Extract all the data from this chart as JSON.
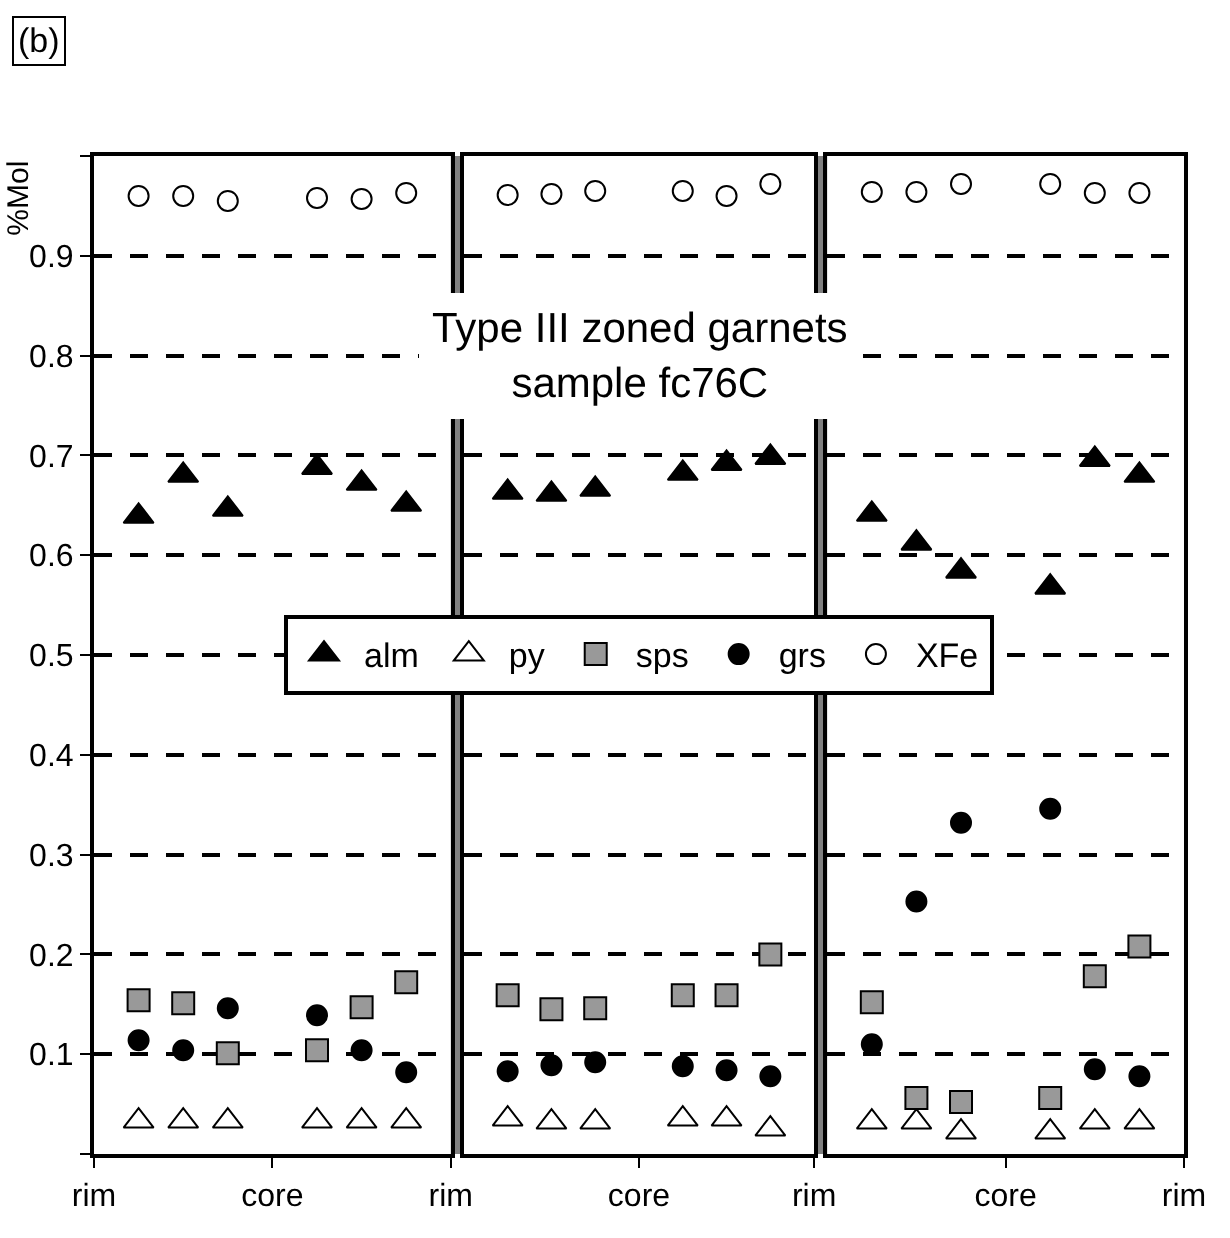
{
  "chart_data": [
    {
      "type": "scatter",
      "ylabel": "%Mol",
      "annotations": [
        "(b)",
        "Type III zoned garnets\nsample fc76C"
      ],
      "categories": [
        "rim",
        null,
        null,
        null,
        "core",
        null,
        null,
        null,
        "rim"
      ],
      "ylim": [
        0,
        1
      ],
      "yticks": [
        {
          "value": 0,
          "label": null
        },
        0.1,
        0.2,
        0.3,
        0.4,
        0.5,
        0.6,
        0.7,
        0.8,
        0.9,
        {
          "value": 1,
          "label": null
        }
      ],
      "grid": "y",
      "line_style": "dashed",
      "legend": "center",
      "series": [
        {
          "name": "alm",
          "color": "#000000",
          "marker": "triangle",
          "values": [
            null,
            0.639,
            0.68,
            0.646,
            null,
            0.688,
            0.672,
            0.651,
            null
          ]
        },
        {
          "name": "py",
          "color": "#ffffff",
          "marker": "triangle",
          "values": [
            null,
            0.033,
            0.033,
            0.033,
            null,
            0.033,
            0.033,
            0.033,
            null
          ]
        },
        {
          "name": "sps",
          "color": "#999999",
          "marker": "square",
          "values": [
            null,
            0.154,
            0.151,
            0.101,
            null,
            0.104,
            0.147,
            0.172,
            null
          ]
        },
        {
          "name": "grs",
          "color": "#000000",
          "marker": "circle",
          "values": [
            null,
            0.114,
            0.104,
            0.146,
            null,
            0.139,
            0.104,
            0.082,
            null
          ]
        },
        {
          "name": "XFe",
          "color": "#ffffff",
          "marker": "circle",
          "values": [
            null,
            0.96,
            0.96,
            0.955,
            null,
            0.958,
            0.957,
            0.963,
            null
          ]
        }
      ]
    },
    {
      "type": "scatter",
      "categories": [
        null,
        null,
        null,
        null,
        "core",
        null,
        null,
        null,
        "rim"
      ],
      "ylim": [
        0,
        1
      ],
      "yticks": [
        0,
        0.1,
        0.2,
        0.3,
        0.4,
        0.5,
        0.6,
        0.7,
        0.8,
        0.9,
        1
      ],
      "tick_labels": "x",
      "grid": "y",
      "line_style": "dashed",
      "series": [
        {
          "name": "alm",
          "color": "#000000",
          "marker": "triangle",
          "values": [
            null,
            0.663,
            0.661,
            0.666,
            null,
            0.682,
            0.692,
            0.698,
            null
          ]
        },
        {
          "name": "py",
          "color": "#ffffff",
          "marker": "triangle",
          "values": [
            null,
            0.035,
            0.032,
            0.032,
            null,
            0.035,
            0.035,
            0.025,
            null
          ]
        },
        {
          "name": "sps",
          "color": "#999999",
          "marker": "square",
          "values": [
            null,
            0.159,
            0.145,
            0.146,
            null,
            0.159,
            0.159,
            0.2,
            null
          ]
        },
        {
          "name": "grs",
          "color": "#000000",
          "marker": "circle",
          "values": [
            null,
            0.083,
            0.089,
            0.092,
            null,
            0.088,
            0.084,
            0.078,
            null
          ]
        },
        {
          "name": "XFe",
          "color": "#ffffff",
          "marker": "circle",
          "values": [
            null,
            0.961,
            0.962,
            0.965,
            null,
            0.965,
            0.96,
            0.972,
            null
          ]
        }
      ]
    },
    {
      "type": "scatter",
      "categories": [
        null,
        null,
        null,
        null,
        "core",
        null,
        null,
        null,
        "rim"
      ],
      "ylim": [
        0,
        1
      ],
      "yticks": [
        0,
        0.1,
        0.2,
        0.3,
        0.4,
        0.5,
        0.6,
        0.7,
        0.8,
        0.9,
        1
      ],
      "tick_labels": "x",
      "grid": "y",
      "line_style": "dashed",
      "series": [
        {
          "name": "alm",
          "color": "#000000",
          "marker": "triangle",
          "values": [
            null,
            0.641,
            0.612,
            0.584,
            null,
            0.568,
            0.696,
            0.68,
            null
          ]
        },
        {
          "name": "py",
          "color": "#ffffff",
          "marker": "triangle",
          "values": [
            null,
            0.032,
            0.032,
            0.022,
            null,
            0.022,
            0.032,
            0.032,
            null
          ]
        },
        {
          "name": "sps",
          "color": "#999999",
          "marker": "square",
          "values": [
            null,
            0.152,
            0.056,
            0.052,
            null,
            0.056,
            0.178,
            0.208,
            null
          ]
        },
        {
          "name": "grs",
          "color": "#000000",
          "marker": "circle",
          "values": [
            null,
            0.11,
            0.253,
            0.332,
            null,
            0.346,
            0.085,
            0.078,
            null
          ]
        },
        {
          "name": "XFe",
          "color": "#ffffff",
          "marker": "circle",
          "values": [
            null,
            0.964,
            0.964,
            0.972,
            null,
            0.972,
            0.963,
            0.963,
            null
          ]
        }
      ]
    }
  ]
}
